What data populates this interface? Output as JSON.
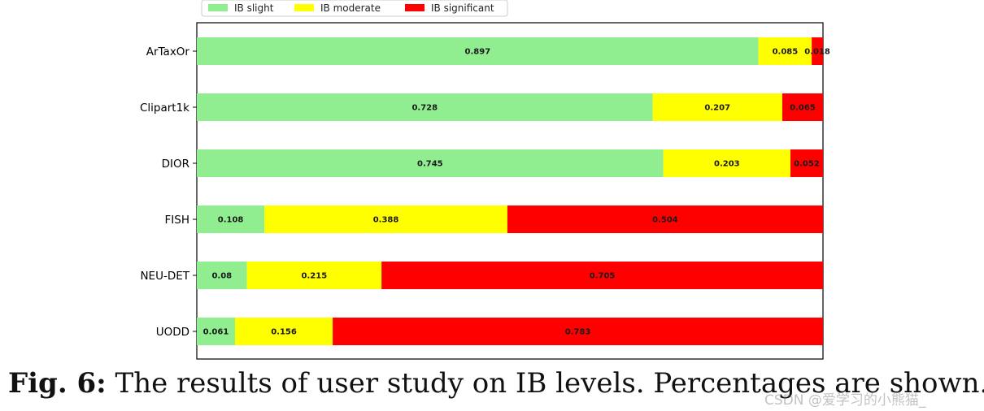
{
  "chart_data": {
    "type": "bar",
    "orientation": "horizontal",
    "stacked": true,
    "categories": [
      "ArTaxOr",
      "Clipart1k",
      "DIOR",
      "FISH",
      "NEU-DET",
      "UODD"
    ],
    "series": [
      {
        "name": "IB slight",
        "color": "#90ee90",
        "values": [
          0.897,
          0.728,
          0.745,
          0.108,
          0.08,
          0.061
        ],
        "labels": [
          "0.897",
          "0.728",
          "0.745",
          "0.108",
          "0.08",
          "0.061"
        ]
      },
      {
        "name": "IB moderate",
        "color": "#ffff00",
        "values": [
          0.085,
          0.207,
          0.203,
          0.388,
          0.215,
          0.156
        ],
        "labels": [
          "0.085",
          "0.207",
          "0.203",
          "0.388",
          "0.215",
          "0.156"
        ]
      },
      {
        "name": "IB significant",
        "color": "#ff0000",
        "values": [
          0.018,
          0.065,
          0.052,
          0.504,
          0.705,
          0.783
        ],
        "labels": [
          "0.018",
          "0.065",
          "0.052",
          "0.504",
          "0.705",
          "0.783"
        ]
      }
    ],
    "xlim": [
      0,
      1
    ],
    "grid": false,
    "legend_position": "top"
  },
  "caption": {
    "label": "Fig. 6:",
    "text": "The results of user study on IB levels. Percentages are shown."
  },
  "watermark": "CSDN @爱学习的小熊猫_"
}
